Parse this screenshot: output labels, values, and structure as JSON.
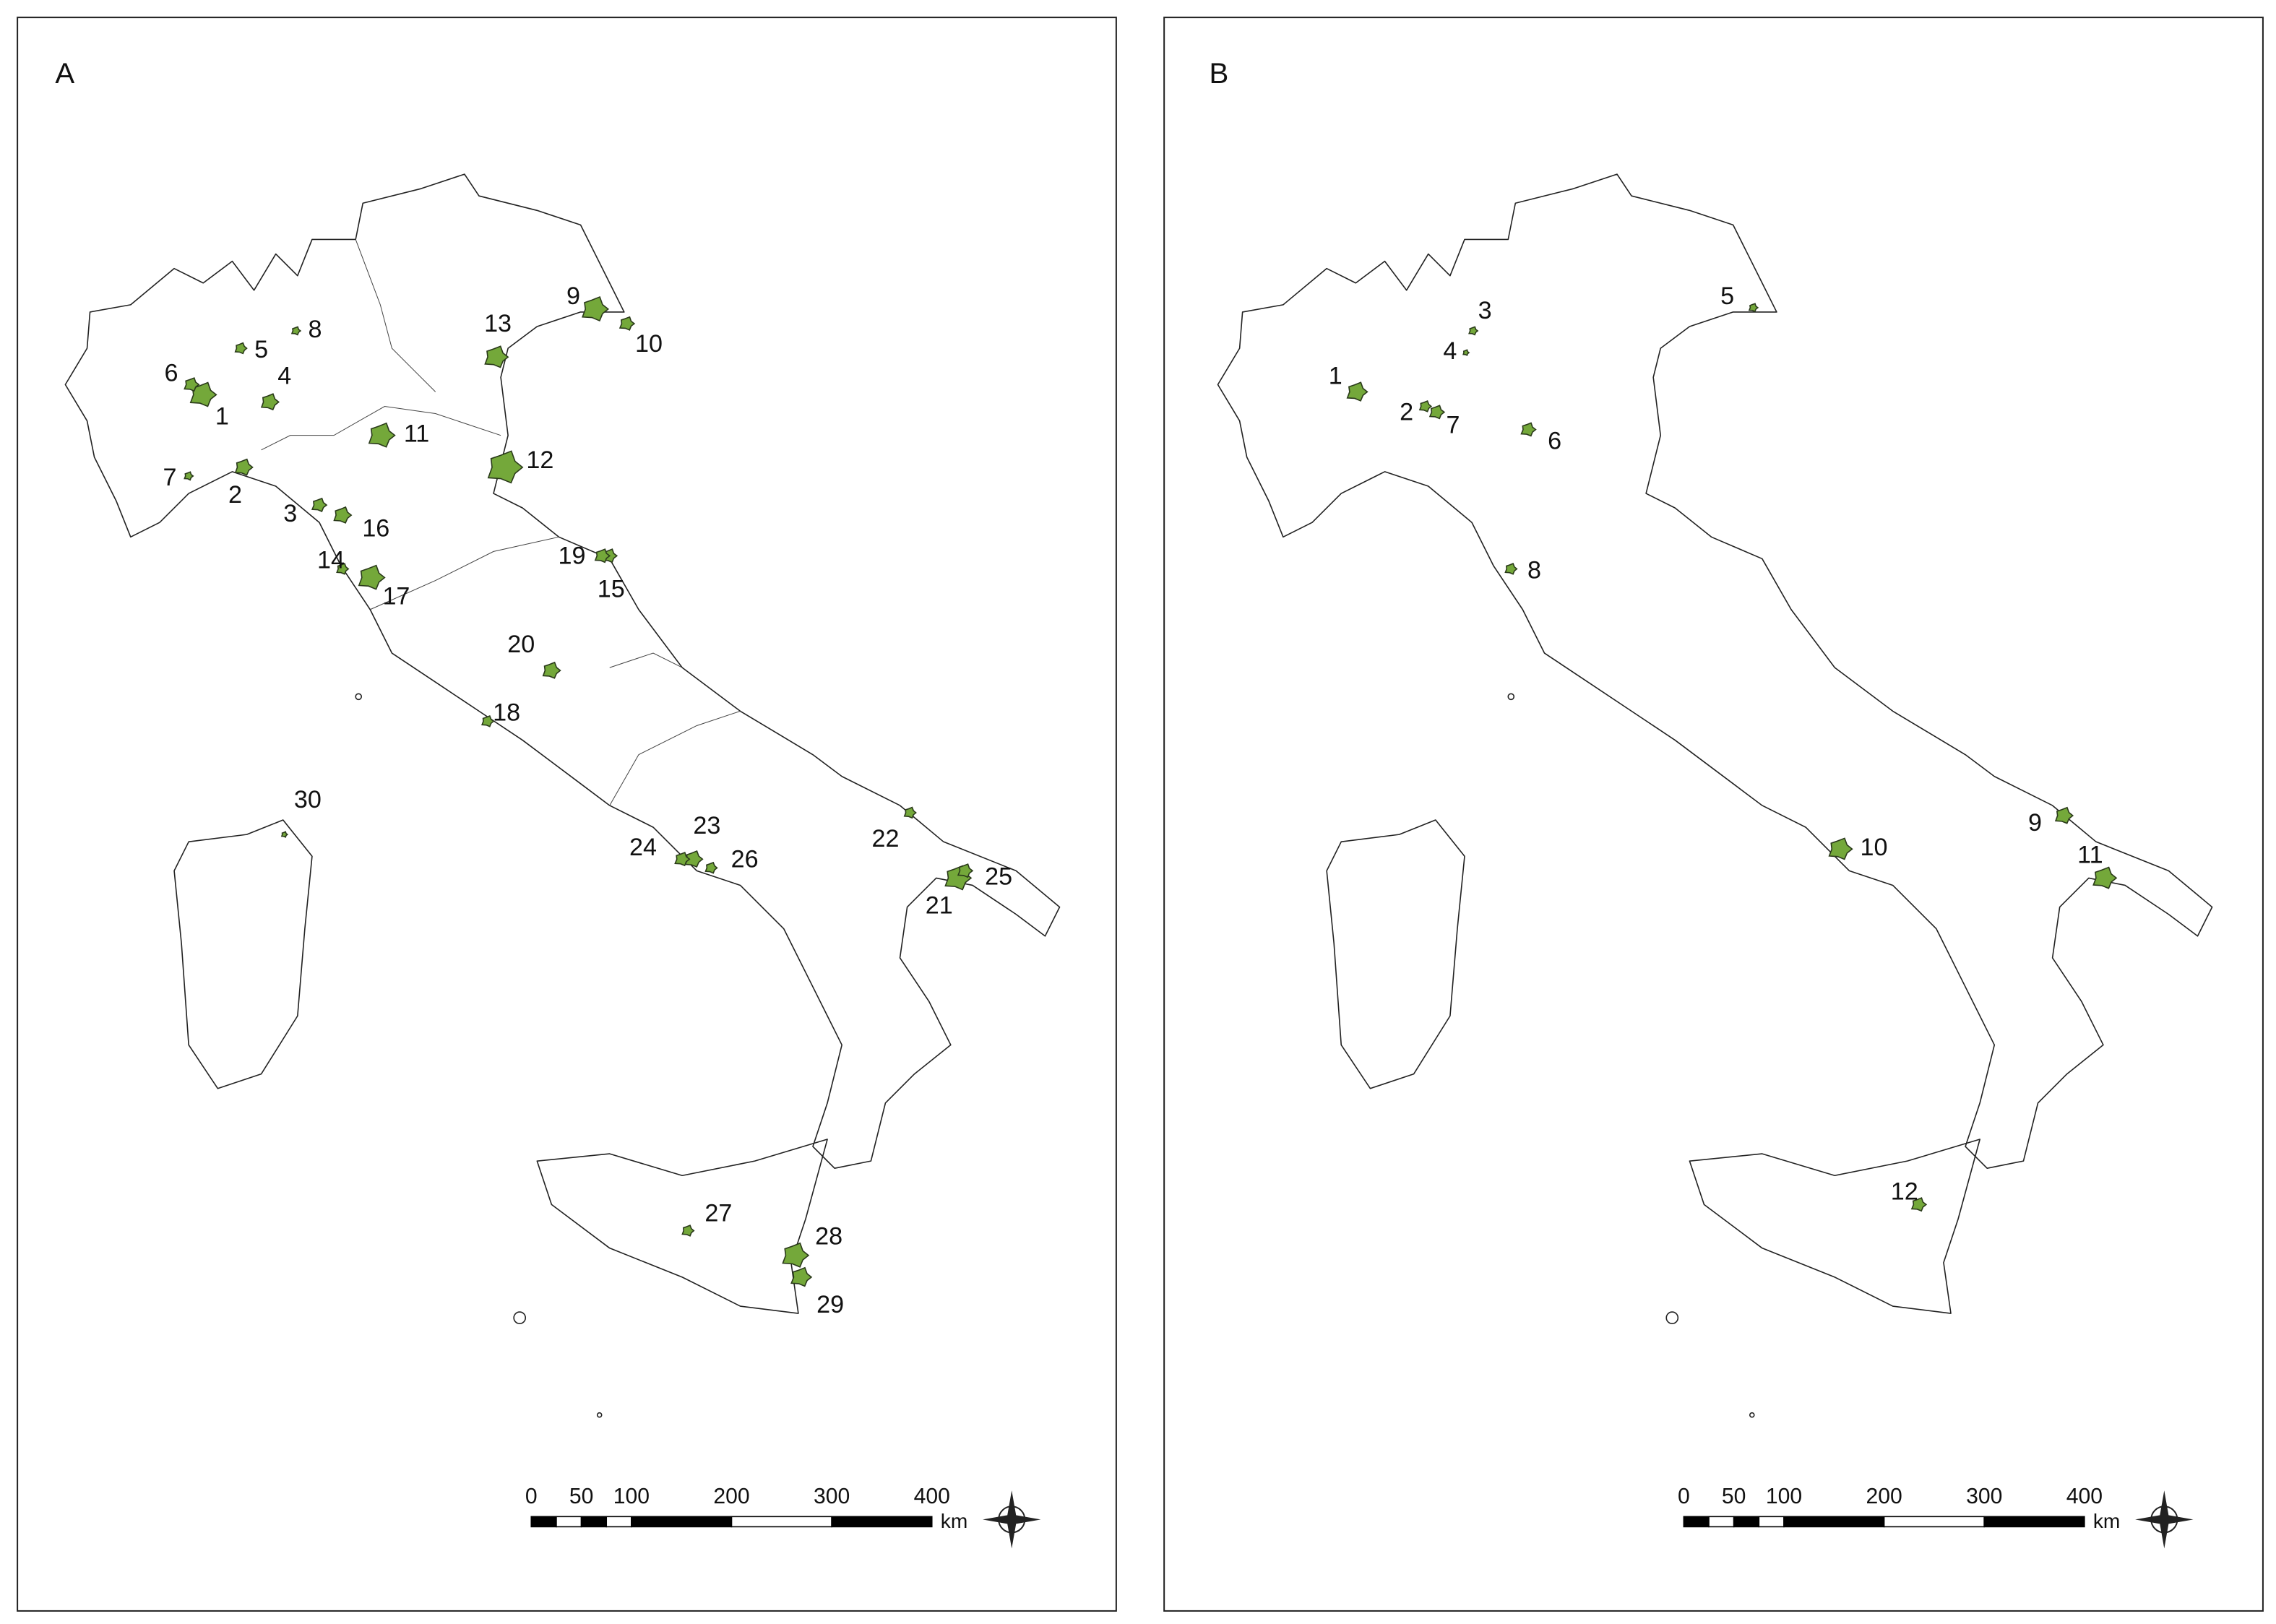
{
  "panels": [
    {
      "label": "A",
      "sites": [
        "1",
        "2",
        "3",
        "4",
        "5",
        "6",
        "7",
        "8",
        "9",
        "10",
        "11",
        "12",
        "13",
        "14",
        "15",
        "16",
        "17",
        "18",
        "19",
        "20",
        "21",
        "22",
        "23",
        "24",
        "25",
        "26",
        "27",
        "28",
        "29",
        "30"
      ]
    },
    {
      "label": "B",
      "sites": [
        "1",
        "2",
        "3",
        "4",
        "5",
        "6",
        "7",
        "8",
        "9",
        "10",
        "11",
        "12"
      ]
    }
  ],
  "scale_bar": {
    "ticks": [
      "0",
      "50",
      "100",
      "200",
      "300",
      "400"
    ],
    "unit": "km"
  }
}
